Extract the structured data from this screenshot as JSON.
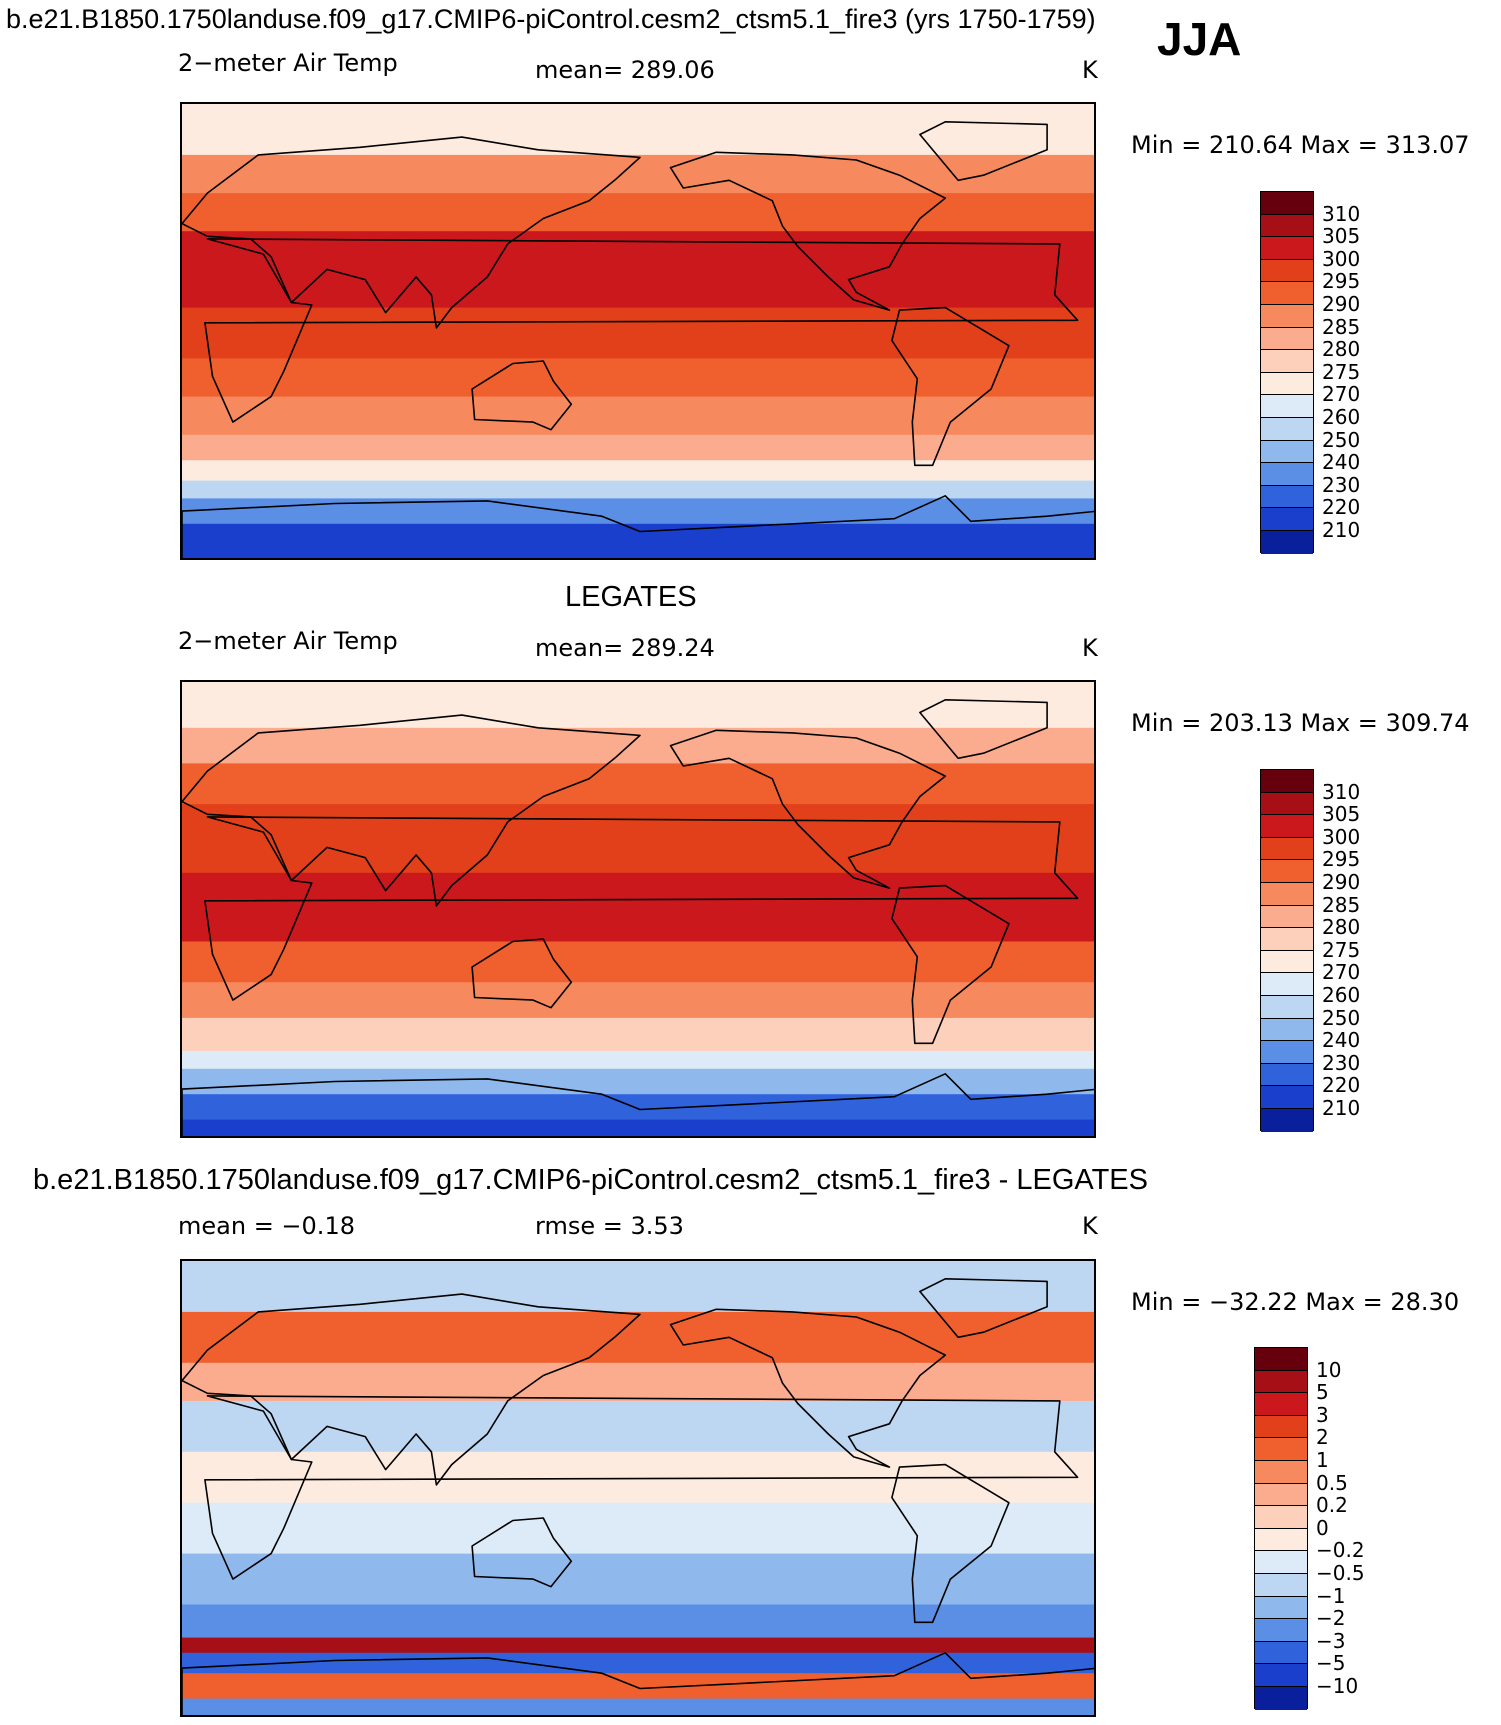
{
  "figure": {
    "title": "b.e21.B1850.1750landuse.f09_g17.CMIP6-piControl.cesm2_ctsm5.1_fire3 (yrs 1750-1759)",
    "season": "JJA"
  },
  "chart_data": [
    {
      "type": "heatmap",
      "panel": "model",
      "variable_label": "2−meter Air Temp",
      "mean_text": "mean=  289.06",
      "units": "K",
      "min_max_text": "Min  =  210.64  Max  =  313.07",
      "min": 210.64,
      "max": 313.07,
      "mean": 289.06,
      "colorbar": {
        "levels": [
          "310",
          "305",
          "300",
          "295",
          "290",
          "285",
          "280",
          "275",
          "270",
          "260",
          "250",
          "240",
          "230",
          "220",
          "210"
        ],
        "colors": [
          "#67000d",
          "#a50f15",
          "#cb181d",
          "#e2401a",
          "#f0602f",
          "#f7895e",
          "#fcac8e",
          "#fdd0bb",
          "#fdebdf",
          "#dcebf7",
          "#bdd7f2",
          "#8fb9ec",
          "#5b8ee5",
          "#2f62db",
          "#1a3fcd",
          "#0a1f9c"
        ]
      },
      "bands": [
        {
          "lat_from": 90,
          "lat_to": 70,
          "value": 272
        },
        {
          "lat_from": 70,
          "lat_to": 55,
          "value": 286
        },
        {
          "lat_from": 55,
          "lat_to": 40,
          "value": 292
        },
        {
          "lat_from": 40,
          "lat_to": 10,
          "value": 300
        },
        {
          "lat_from": 10,
          "lat_to": -10,
          "value": 299
        },
        {
          "lat_from": -10,
          "lat_to": -25,
          "value": 294
        },
        {
          "lat_from": -25,
          "lat_to": -40,
          "value": 288
        },
        {
          "lat_from": -40,
          "lat_to": -50,
          "value": 280
        },
        {
          "lat_from": -50,
          "lat_to": -58,
          "value": 272
        },
        {
          "lat_from": -58,
          "lat_to": -65,
          "value": 255
        },
        {
          "lat_from": -65,
          "lat_to": -75,
          "value": 235
        },
        {
          "lat_from": -75,
          "lat_to": -90,
          "value": 218
        }
      ]
    },
    {
      "type": "heatmap",
      "panel": "obs",
      "section_title": "LEGATES",
      "variable_label": "2−meter Air Temp",
      "mean_text": "mean=  289.24",
      "units": "K",
      "min_max_text": "Min  =  203.13  Max  =  309.74",
      "min": 203.13,
      "max": 309.74,
      "mean": 289.24,
      "colorbar": {
        "levels": [
          "310",
          "305",
          "300",
          "295",
          "290",
          "285",
          "280",
          "275",
          "270",
          "260",
          "250",
          "240",
          "230",
          "220",
          "210"
        ],
        "colors": [
          "#67000d",
          "#a50f15",
          "#cb181d",
          "#e2401a",
          "#f0602f",
          "#f7895e",
          "#fcac8e",
          "#fdd0bb",
          "#fdebdf",
          "#dcebf7",
          "#bdd7f2",
          "#8fb9ec",
          "#5b8ee5",
          "#2f62db",
          "#1a3fcd",
          "#0a1f9c"
        ]
      },
      "bands": [
        {
          "lat_from": 90,
          "lat_to": 72,
          "value": 273
        },
        {
          "lat_from": 72,
          "lat_to": 58,
          "value": 283
        },
        {
          "lat_from": 58,
          "lat_to": 42,
          "value": 290
        },
        {
          "lat_from": 42,
          "lat_to": 15,
          "value": 298
        },
        {
          "lat_from": 15,
          "lat_to": -12,
          "value": 300
        },
        {
          "lat_from": -12,
          "lat_to": -28,
          "value": 293
        },
        {
          "lat_from": -28,
          "lat_to": -42,
          "value": 285
        },
        {
          "lat_from": -42,
          "lat_to": -55,
          "value": 278
        },
        {
          "lat_from": -55,
          "lat_to": -62,
          "value": 268
        },
        {
          "lat_from": -62,
          "lat_to": -72,
          "value": 245
        },
        {
          "lat_from": -72,
          "lat_to": -82,
          "value": 225
        },
        {
          "lat_from": -82,
          "lat_to": -90,
          "value": 212
        }
      ]
    },
    {
      "type": "heatmap",
      "panel": "difference",
      "section_title": "b.e21.B1850.1750landuse.f09_g17.CMIP6-piControl.cesm2_ctsm5.1_fire3 - LEGATES",
      "mean_text": "mean =    −0.18",
      "rmse_text": "rmse =     3.53",
      "units": "K",
      "min_max_text": "Min  =  −32.22  Max  =    28.30",
      "min": -32.22,
      "max": 28.3,
      "mean": -0.18,
      "rmse": 3.53,
      "colorbar": {
        "levels": [
          "10",
          "5",
          "3",
          "2",
          "1",
          "0.5",
          "0.2",
          "0",
          "−0.2",
          "−0.5",
          "−1",
          "−2",
          "−3",
          "−5",
          "−10"
        ],
        "colors": [
          "#67000d",
          "#a50f15",
          "#cb181d",
          "#e2401a",
          "#f0602f",
          "#f7895e",
          "#fcac8e",
          "#fdd0bb",
          "#fdebdf",
          "#dcebf7",
          "#bdd7f2",
          "#8fb9ec",
          "#5b8ee5",
          "#2f62db",
          "#1a3fcd",
          "#0a1f9c"
        ]
      },
      "bands": [
        {
          "lat_from": 90,
          "lat_to": 70,
          "value": -0.7
        },
        {
          "lat_from": 70,
          "lat_to": 50,
          "value": 1.5
        },
        {
          "lat_from": 50,
          "lat_to": 35,
          "value": 0.4
        },
        {
          "lat_from": 35,
          "lat_to": 15,
          "value": -0.6
        },
        {
          "lat_from": 15,
          "lat_to": -5,
          "value": -0.1
        },
        {
          "lat_from": -5,
          "lat_to": -25,
          "value": -0.4
        },
        {
          "lat_from": -25,
          "lat_to": -45,
          "value": -1.5
        },
        {
          "lat_from": -45,
          "lat_to": -58,
          "value": -2.5
        },
        {
          "lat_from": -58,
          "lat_to": -64,
          "value": 6
        },
        {
          "lat_from": -64,
          "lat_to": -72,
          "value": -4
        },
        {
          "lat_from": -72,
          "lat_to": -82,
          "value": 1.5
        },
        {
          "lat_from": -82,
          "lat_to": -90,
          "value": -2.5
        }
      ]
    }
  ]
}
